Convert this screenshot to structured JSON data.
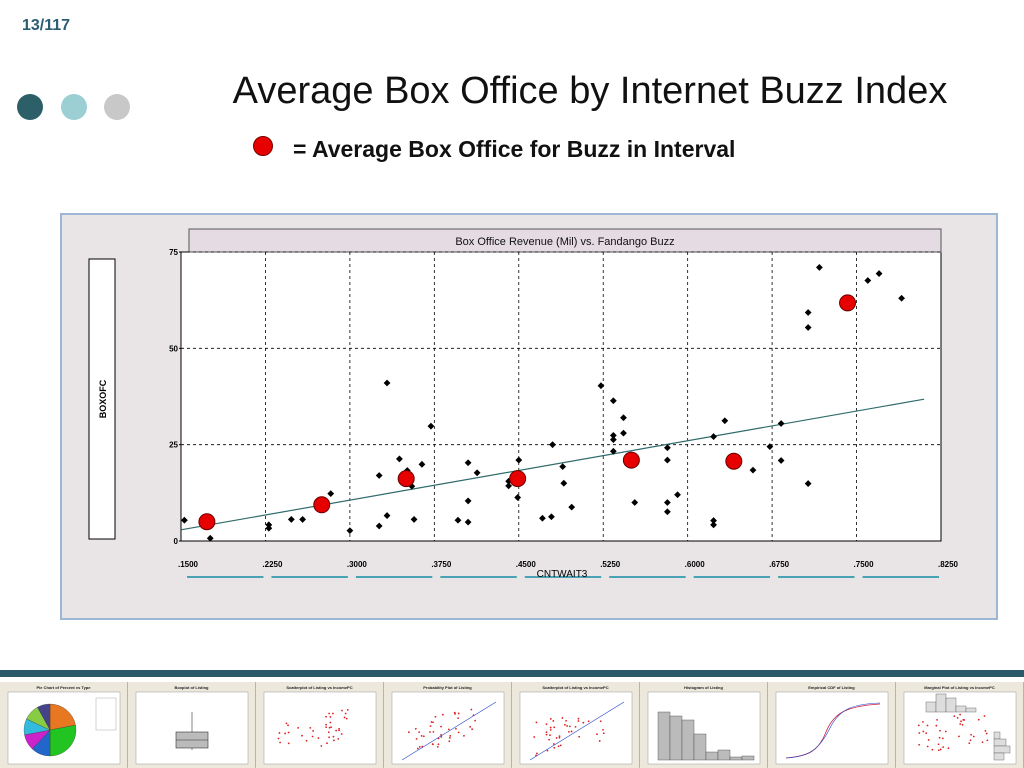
{
  "slide": {
    "number": "13/117"
  },
  "header": {
    "title": "Average Box Office by Internet Buzz Index",
    "legend_note": "= Average Box Office for Buzz in Interval"
  },
  "colors": {
    "dot1": "#2c5f68",
    "dot2": "#9ccfd4",
    "dot3": "#c8c8c8",
    "average_marker": "#e60000",
    "fit_line": "#2f6b6b"
  },
  "chart_data": {
    "type": "scatter",
    "title": "Box Office Revenue (Mil) vs. Fandango Buzz",
    "xlabel": "CNTWAIT3",
    "ylabel": "BOXOFC",
    "xlim": [
      0.15,
      0.825
    ],
    "ylim": [
      0,
      75
    ],
    "x_ticks": [
      0.15,
      0.225,
      0.3,
      0.375,
      0.45,
      0.525,
      0.6,
      0.675,
      0.75,
      0.825
    ],
    "x_tick_labels": [
      ".1500",
      ".2250",
      ".3000",
      ".3750",
      ".4500",
      ".5250",
      ".6000",
      ".6750",
      ".7500",
      ".8250"
    ],
    "y_ticks": [
      0,
      25,
      50,
      75
    ],
    "y_tick_labels": [
      "0",
      "25",
      "50",
      "75"
    ],
    "grid": true,
    "series": [
      {
        "marker": "diamond",
        "points": [
          [
            0.153,
            5.4
          ],
          [
            0.176,
            0.7
          ],
          [
            0.228,
            4.2
          ],
          [
            0.228,
            3.3
          ],
          [
            0.248,
            5.6
          ],
          [
            0.258,
            5.6
          ],
          [
            0.283,
            12.3
          ],
          [
            0.3,
            2.7
          ],
          [
            0.326,
            3.9
          ],
          [
            0.326,
            17.0
          ],
          [
            0.333,
            6.6
          ],
          [
            0.333,
            41.0
          ],
          [
            0.344,
            21.3
          ],
          [
            0.351,
            18.3
          ],
          [
            0.355,
            14.2
          ],
          [
            0.357,
            5.6
          ],
          [
            0.364,
            19.9
          ],
          [
            0.372,
            29.8
          ],
          [
            0.396,
            5.4
          ],
          [
            0.405,
            4.9
          ],
          [
            0.405,
            10.4
          ],
          [
            0.405,
            20.3
          ],
          [
            0.413,
            17.7
          ],
          [
            0.441,
            14.3
          ],
          [
            0.441,
            15.5
          ],
          [
            0.449,
            11.3
          ],
          [
            0.45,
            21.0
          ],
          [
            0.471,
            5.9
          ],
          [
            0.479,
            6.3
          ],
          [
            0.48,
            25.0
          ],
          [
            0.489,
            19.3
          ],
          [
            0.49,
            15.0
          ],
          [
            0.497,
            8.8
          ],
          [
            0.523,
            40.3
          ],
          [
            0.534,
            36.4
          ],
          [
            0.534,
            27.4
          ],
          [
            0.534,
            26.3
          ],
          [
            0.534,
            23.3
          ],
          [
            0.543,
            28.0
          ],
          [
            0.543,
            32.0
          ],
          [
            0.553,
            10.0
          ],
          [
            0.582,
            24.2
          ],
          [
            0.582,
            21.0
          ],
          [
            0.582,
            10.0
          ],
          [
            0.582,
            7.6
          ],
          [
            0.591,
            12.0
          ],
          [
            0.623,
            27.1
          ],
          [
            0.623,
            5.3
          ],
          [
            0.623,
            4.2
          ],
          [
            0.633,
            31.2
          ],
          [
            0.658,
            18.4
          ],
          [
            0.673,
            24.5
          ],
          [
            0.683,
            30.5
          ],
          [
            0.683,
            20.9
          ],
          [
            0.707,
            14.9
          ],
          [
            0.707,
            55.4
          ],
          [
            0.707,
            59.3
          ],
          [
            0.717,
            71.0
          ],
          [
            0.76,
            67.6
          ],
          [
            0.77,
            69.4
          ],
          [
            0.79,
            63.0
          ]
        ]
      },
      {
        "name": "Average Box Office for Buzz in Interval",
        "marker": "circle",
        "points": [
          [
            0.173,
            5.0
          ],
          [
            0.275,
            9.4
          ],
          [
            0.35,
            16.2
          ],
          [
            0.449,
            16.2
          ],
          [
            0.55,
            21.0
          ],
          [
            0.641,
            20.7
          ],
          [
            0.742,
            61.8
          ]
        ]
      }
    ],
    "fit_line": {
      "from": [
        0.15,
        2.9
      ],
      "to": [
        0.81,
        36.8
      ]
    }
  },
  "thumbnails": [
    {
      "title": "Pie Chart of Percent vs Type",
      "kind": "pie"
    },
    {
      "title": "Boxplot of Listing",
      "kind": "box"
    },
    {
      "title": "Scatterplot of Listing vs IncomePC",
      "kind": "scatter"
    },
    {
      "title": "Probability Plot of Listing",
      "kind": "prob"
    },
    {
      "title": "Scatterplot of Listing vs IncomePC",
      "kind": "scatter-fit"
    },
    {
      "title": "Histogram of Listing",
      "kind": "hist"
    },
    {
      "title": "Empirical CDF of Listing",
      "kind": "cdf"
    },
    {
      "title": "Marginal Plot of Listing vs IncomePC",
      "kind": "marginal"
    }
  ]
}
